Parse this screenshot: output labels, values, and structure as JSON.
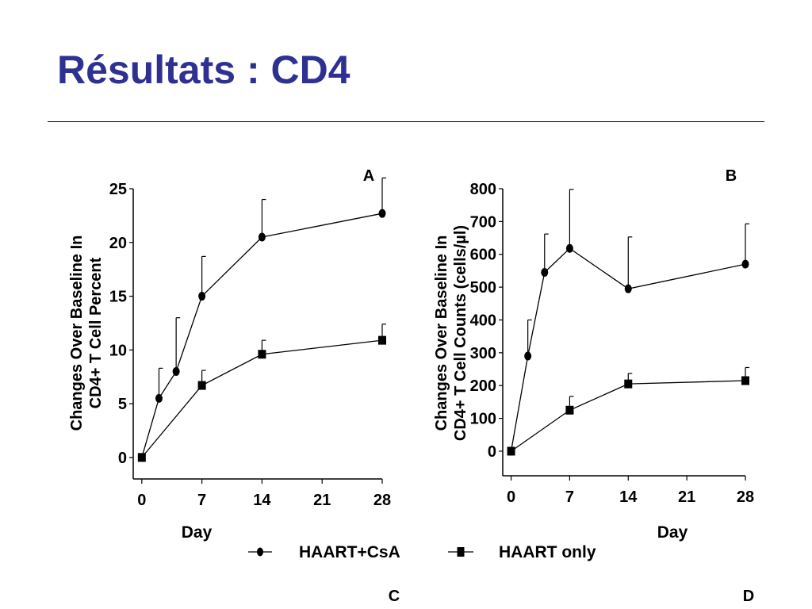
{
  "slide": {
    "title": "Résultats : CD4",
    "corner_labels": [
      "C",
      "D"
    ]
  },
  "legend": {
    "entries": [
      {
        "name": "HAART+CsA",
        "marker": "circle"
      },
      {
        "name": "HAART only",
        "marker": "square"
      }
    ]
  },
  "chart_data": [
    {
      "type": "line",
      "panel_label": "A",
      "ylabel_lines": [
        "Changes Over Baseline In",
        "CD4+ T Cell Percent"
      ],
      "xlabel": "Day",
      "xticks": [
        0,
        7,
        14,
        21,
        28
      ],
      "yticks": [
        0,
        5,
        10,
        15,
        20,
        25
      ],
      "xlim": [
        -1,
        28
      ],
      "ylim": [
        -2,
        25
      ],
      "series": [
        {
          "name": "HAART+CsA",
          "marker": "circle",
          "x": [
            0,
            2,
            4,
            7,
            14,
            28
          ],
          "y": [
            0,
            5.5,
            8,
            15,
            20.5,
            22.7
          ],
          "err": [
            0,
            2.8,
            5,
            3.7,
            3.5,
            3.3
          ]
        },
        {
          "name": "HAART only",
          "marker": "square",
          "x": [
            0,
            7,
            14,
            28
          ],
          "y": [
            0,
            6.7,
            9.6,
            10.9
          ],
          "err": [
            0,
            1.4,
            1.3,
            1.5
          ]
        }
      ]
    },
    {
      "type": "line",
      "panel_label": "B",
      "ylabel_lines": [
        "Changes Over Baseline In",
        "CD4+ T Cell Counts (cells/µl)"
      ],
      "xlabel": "Day",
      "xticks": [
        0,
        7,
        14,
        21,
        28
      ],
      "yticks": [
        0,
        100,
        200,
        300,
        400,
        500,
        600,
        700,
        800
      ],
      "xlim": [
        -1,
        28
      ],
      "ylim": [
        -75,
        800
      ],
      "series": [
        {
          "name": "HAART+CsA",
          "marker": "circle",
          "x": [
            0,
            2,
            4,
            7,
            14,
            28
          ],
          "y": [
            0,
            290,
            545,
            618,
            495,
            570
          ],
          "err": [
            0,
            110,
            117,
            180,
            158,
            123
          ]
        },
        {
          "name": "HAART only",
          "marker": "square",
          "x": [
            0,
            7,
            14,
            28
          ],
          "y": [
            0,
            125,
            205,
            215
          ],
          "err": [
            0,
            42,
            32,
            40
          ]
        }
      ]
    }
  ]
}
